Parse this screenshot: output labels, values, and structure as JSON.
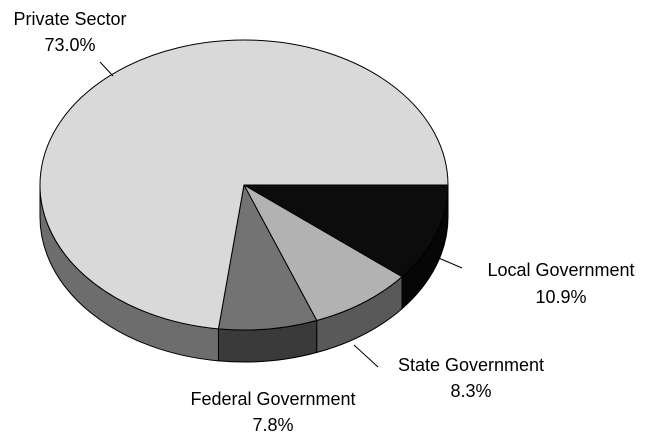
{
  "chart_data": {
    "type": "pie3d",
    "categories": [
      "Local Government",
      "State Government",
      "Federal Government",
      "Private Sector"
    ],
    "values": [
      10.9,
      8.3,
      7.8,
      73.0
    ],
    "value_labels": [
      "10.9%",
      "8.3%",
      "7.8%",
      "73.0%"
    ],
    "colors": [
      "#0c0c0c",
      "#b2b2b2",
      "#737373",
      "#d9d9d9"
    ]
  }
}
